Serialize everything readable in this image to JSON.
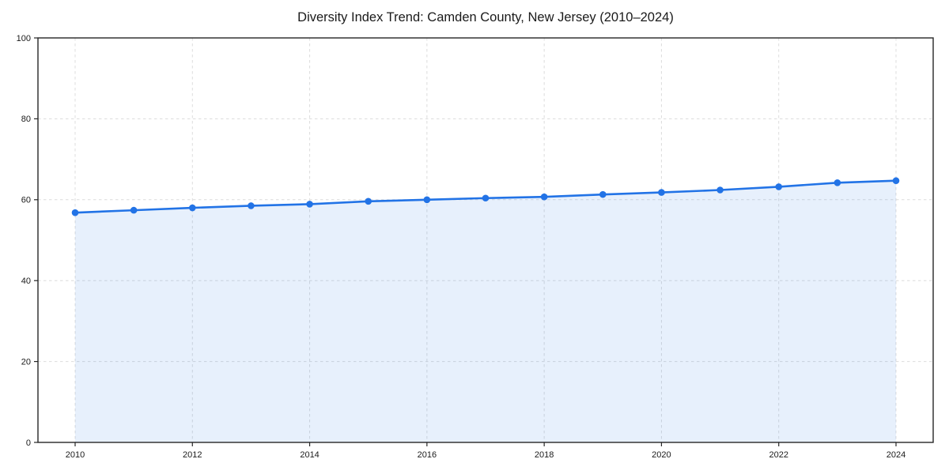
{
  "chart_data": {
    "type": "line",
    "title": "Diversity Index Trend: Camden County, New Jersey (2010–2024)",
    "x": [
      2010,
      2011,
      2012,
      2013,
      2014,
      2015,
      2016,
      2017,
      2018,
      2019,
      2020,
      2021,
      2022,
      2023,
      2024
    ],
    "series": [
      {
        "name": "Diversity Index",
        "values": [
          56.8,
          57.4,
          58.0,
          58.5,
          58.9,
          59.6,
          60.0,
          60.4,
          60.7,
          61.3,
          61.8,
          62.4,
          63.2,
          64.2,
          64.7
        ]
      }
    ],
    "xlabel": "",
    "ylabel": "",
    "ylim": [
      0,
      100
    ],
    "yticks": [
      0,
      20,
      40,
      60,
      80,
      100
    ],
    "xticks": [
      2010,
      2012,
      2014,
      2016,
      2018,
      2020,
      2022,
      2024
    ],
    "grid": true,
    "grid_style": "dashed",
    "legend_position": "none",
    "area_fill": true,
    "line_color": "#2273e6",
    "fill_color": "rgba(34, 115, 230, 0.11)",
    "marker": "circle",
    "background": "#ffffff"
  }
}
